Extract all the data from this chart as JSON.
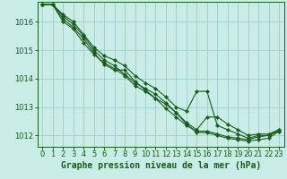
{
  "title": "Graphe pression niveau de la mer (hPa)",
  "background_color": "#c8ece6",
  "grid_color": "#a0cccc",
  "line_color": "#1a5c1a",
  "marker_color": "#1a5c1a",
  "xlim": [
    -0.5,
    23.5
  ],
  "ylim": [
    1011.6,
    1016.7
  ],
  "yticks": [
    1012,
    1013,
    1014,
    1015,
    1016
  ],
  "xticks": [
    0,
    1,
    2,
    3,
    4,
    5,
    6,
    7,
    8,
    9,
    10,
    11,
    12,
    13,
    14,
    15,
    16,
    17,
    18,
    19,
    20,
    21,
    22,
    23
  ],
  "series": [
    [
      1016.6,
      1016.6,
      1016.1,
      1015.8,
      1015.4,
      1014.9,
      1014.5,
      1014.3,
      1014.3,
      1013.9,
      1013.6,
      1013.3,
      1013.1,
      1012.8,
      1012.4,
      1012.1,
      1012.1,
      1012.0,
      1011.9,
      1011.85,
      1011.8,
      1011.85,
      1011.9,
      1012.15
    ],
    [
      1016.6,
      1016.6,
      1016.0,
      1015.75,
      1015.25,
      1014.85,
      1014.55,
      1014.35,
      1014.1,
      1013.75,
      1013.55,
      1013.3,
      1012.95,
      1012.65,
      1012.35,
      1012.15,
      1012.15,
      1012.05,
      1011.95,
      1011.9,
      1011.85,
      1011.95,
      1012.0,
      1012.2
    ],
    [
      1016.6,
      1016.6,
      1016.2,
      1015.9,
      1015.5,
      1015.0,
      1014.65,
      1014.45,
      1014.15,
      1013.85,
      1013.65,
      1013.45,
      1013.15,
      1012.8,
      1012.45,
      1012.2,
      1012.65,
      1012.65,
      1012.4,
      1012.2,
      1012.0,
      1012.05,
      1012.05,
      1012.2
    ],
    [
      1016.6,
      1016.6,
      1016.25,
      1016.0,
      1015.55,
      1015.1,
      1014.8,
      1014.65,
      1014.45,
      1014.1,
      1013.85,
      1013.65,
      1013.35,
      1013.0,
      1012.85,
      1013.55,
      1013.55,
      1012.35,
      1012.2,
      1012.05,
      1011.9,
      1012.0,
      1012.0,
      1012.15
    ]
  ],
  "xlabel_fontsize": 7,
  "tick_fontsize": 6
}
